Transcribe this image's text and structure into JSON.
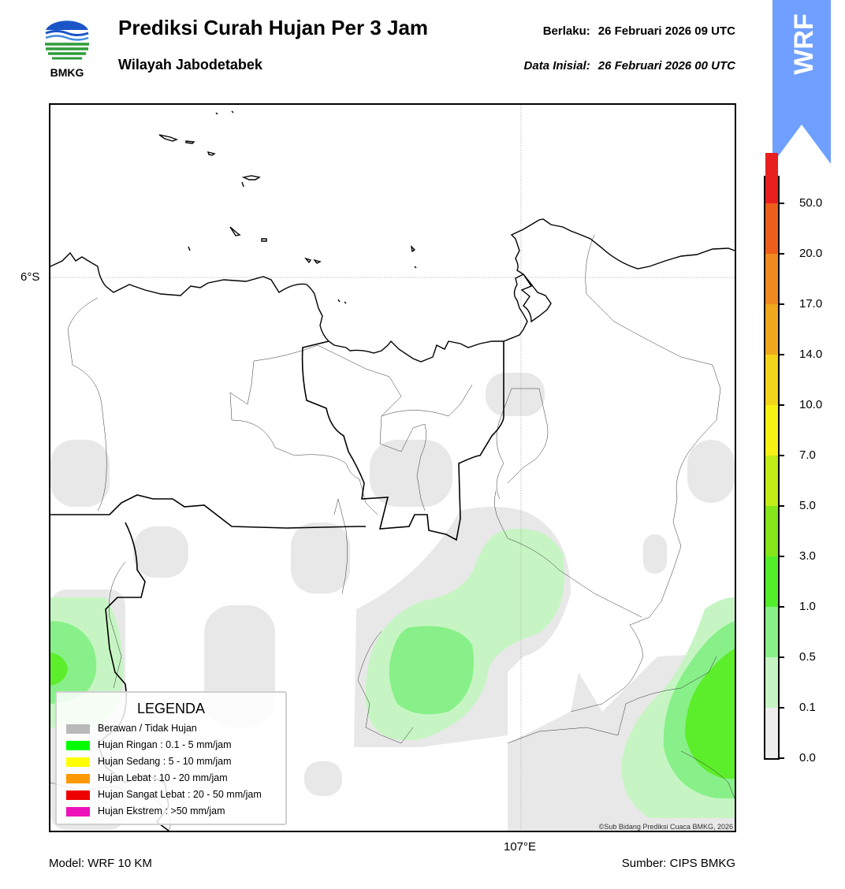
{
  "header": {
    "logo_text": "BMKG",
    "title": "Prediksi Curah Hujan Per 3 Jam",
    "subtitle": "Wilayah Jabodetabek",
    "valid_label": "Berlaku:",
    "valid_value": "26 Februari 2026 09 UTC",
    "init_label": "Data Inisial:",
    "init_value": "26 Februari 2026 00 UTC"
  },
  "banner": {
    "text": "WRF",
    "color": "#6fa0ff"
  },
  "map": {
    "lat_label": "6°S",
    "lon_label": "107°E",
    "copyright": "©Sub Bidang Prediksi Cuaca BMKG, 2026"
  },
  "legend": {
    "title": "LEGENDA",
    "items": [
      {
        "label": "Berawan / Tidak Hujan",
        "color": "#b9b9b9"
      },
      {
        "label": "Hujan Ringan : 0.1 - 5 mm/jam",
        "color": "#00ff00"
      },
      {
        "label": "Hujan Sedang : 5 - 10 mm/jam",
        "color": "#ffff00"
      },
      {
        "label": "Hujan Lebat : 10 - 20 mm/jam",
        "color": "#ff9900"
      },
      {
        "label": "Hujan Sangat Lebat : 20 - 50 mm/jam",
        "color": "#ee0000"
      },
      {
        "label": "Hujan Ekstrem : >50 mm/jam",
        "color": "#ee11bb"
      }
    ]
  },
  "colorbar": {
    "labels": [
      "0.0",
      "0.1",
      "0.5",
      "1.0",
      "3.0",
      "5.0",
      "7.0",
      "10.0",
      "14.0",
      "17.0",
      "20.0",
      "50.0"
    ],
    "colors": [
      "#ededed",
      "#c6f5c3",
      "#88f088",
      "#52ee2a",
      "#84e61a",
      "#c2ec16",
      "#f8f214",
      "#f2d41a",
      "#f0a81e",
      "#ef8a1f",
      "#ec5e1c",
      "#e81f1f",
      "#e11ac0"
    ]
  },
  "footer": {
    "model": "Model: WRF 10 KM",
    "source": "Sumber: CIPS BMKG"
  }
}
